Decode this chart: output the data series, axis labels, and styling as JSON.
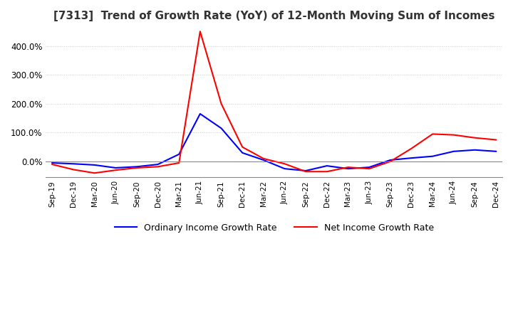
{
  "title": "[7313]  Trend of Growth Rate (YoY) of 12-Month Moving Sum of Incomes",
  "title_fontsize": 11,
  "x_labels": [
    "Sep-19",
    "Dec-19",
    "Mar-20",
    "Jun-20",
    "Sep-20",
    "Dec-20",
    "Mar-21",
    "Jun-21",
    "Sep-21",
    "Dec-21",
    "Mar-22",
    "Jun-22",
    "Sep-22",
    "Dec-22",
    "Mar-23",
    "Jun-23",
    "Sep-23",
    "Dec-23",
    "Mar-24",
    "Jun-24",
    "Sep-24",
    "Dec-24"
  ],
  "ordinary_income": [
    -5,
    -8,
    -12,
    -22,
    -18,
    -10,
    25,
    165,
    115,
    30,
    5,
    -25,
    -32,
    -15,
    -25,
    -20,
    5,
    12,
    18,
    35,
    40,
    35
  ],
  "net_income": [
    -10,
    -28,
    -40,
    -30,
    -22,
    -18,
    -5,
    450,
    200,
    50,
    10,
    -8,
    -35,
    -35,
    -20,
    -25,
    0,
    45,
    95,
    92,
    82,
    75
  ],
  "ordinary_color": "#0000ff",
  "net_color": "#ff0000",
  "ylim_min": -55,
  "ylim_max": 465,
  "yticks": [
    0,
    100,
    200,
    300,
    400
  ],
  "background_color": "#ffffff",
  "grid_color": "#cccccc"
}
